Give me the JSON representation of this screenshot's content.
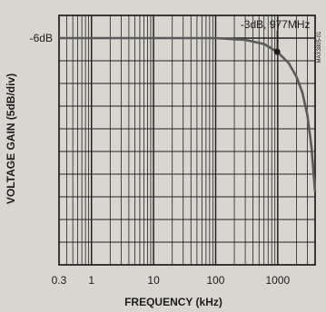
{
  "chart_data": {
    "type": "line",
    "title": "",
    "xlabel": "FREQUENCY (kHz)",
    "ylabel": "VOLTAGE GAIN (5dB/div)",
    "x_scale": "log",
    "xlim": [
      0.3,
      4000
    ],
    "x_tick_labels": [
      {
        "value": 0.3,
        "label": "0.3"
      },
      {
        "value": 1,
        "label": "1"
      },
      {
        "value": 10,
        "label": "10"
      },
      {
        "value": 100,
        "label": "100"
      },
      {
        "value": 1000,
        "label": "1000"
      }
    ],
    "ylim": [
      -56,
      -1
    ],
    "y_tick_labels": [
      {
        "value": -6,
        "label": "-6dB"
      }
    ],
    "y_divisions_db": 5,
    "grid": true,
    "series": [
      {
        "x": [
          0.3,
          1,
          10,
          100,
          300,
          600,
          977,
          1500,
          2000,
          2500,
          3000,
          3500,
          4000
        ],
        "y": [
          -6,
          -6,
          -6,
          -6,
          -6.4,
          -7.3,
          -9,
          -11.5,
          -14.5,
          -18,
          -23,
          -30,
          -40
        ]
      }
    ],
    "annotations": [
      {
        "text": "-3dB, 977MHz",
        "x": 977,
        "y": -9
      }
    ],
    "side_text": "MAX3805-01",
    "colors": {
      "curve": "#5a5a5a",
      "grid": "#222222",
      "background": "#d8d6cf"
    }
  }
}
